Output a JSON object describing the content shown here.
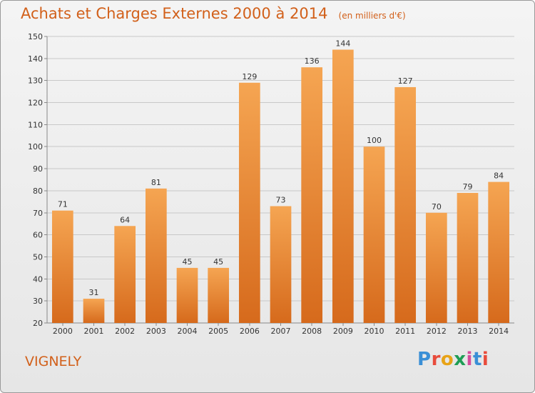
{
  "title": "Achats et Charges Externes 2000 à 2014",
  "unit_note": "(en milliers d'€)",
  "commune": "VIGNELY",
  "logo": {
    "text": "Proxiti",
    "letter_colors": [
      "#3a8fd6",
      "#e84c3c",
      "#e8a317",
      "#1f9d55",
      "#d64c9c",
      "#3a8fd6",
      "#e84c3c"
    ]
  },
  "colors": {
    "accent": "#d2601a",
    "bar_top": "#f5a552",
    "bar_bottom": "#d66a1c",
    "grid": "#c8c8c8"
  },
  "chart_data": {
    "type": "bar",
    "title": "Achats et Charges Externes 2000 à 2014",
    "categories": [
      "2000",
      "2001",
      "2002",
      "2003",
      "2004",
      "2005",
      "2006",
      "2007",
      "2008",
      "2009",
      "2010",
      "2011",
      "2012",
      "2013",
      "2014"
    ],
    "values": [
      71,
      31,
      64,
      81,
      45,
      45,
      129,
      73,
      136,
      144,
      100,
      127,
      70,
      79,
      84
    ],
    "ylim": [
      20,
      150
    ],
    "yticks": [
      20,
      30,
      40,
      50,
      60,
      70,
      80,
      90,
      100,
      110,
      120,
      130,
      140,
      150
    ],
    "grid": true,
    "legend": "none"
  }
}
